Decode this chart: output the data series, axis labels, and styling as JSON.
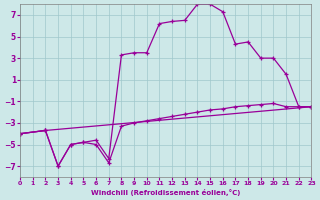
{
  "xlabel": "Windchill (Refroidissement éolien,°C)",
  "xlim": [
    0,
    23
  ],
  "ylim": [
    -8,
    8
  ],
  "xticks": [
    0,
    1,
    2,
    3,
    4,
    5,
    6,
    7,
    8,
    9,
    10,
    11,
    12,
    13,
    14,
    15,
    16,
    17,
    18,
    19,
    20,
    21,
    22,
    23
  ],
  "yticks": [
    -7,
    -5,
    -3,
    -1,
    1,
    3,
    5,
    7
  ],
  "bg_color": "#cde8e8",
  "line_color": "#990099",
  "line1_x": [
    0,
    2,
    23
  ],
  "line1_y": [
    -4.0,
    -3.7,
    -1.5
  ],
  "line2_x": [
    0,
    2,
    3,
    4,
    5,
    6,
    7,
    8,
    9,
    10,
    11,
    12,
    13,
    14,
    15,
    16,
    17,
    18,
    19,
    20,
    21,
    22,
    23
  ],
  "line2_y": [
    -4.0,
    -3.7,
    -7.0,
    -5.0,
    -4.8,
    -5.0,
    -6.7,
    -3.3,
    -3.0,
    -2.8,
    -2.6,
    -2.4,
    -2.2,
    -2.0,
    -1.8,
    -1.7,
    -1.5,
    -1.4,
    -1.3,
    -1.2,
    -1.5,
    -1.5,
    -1.5
  ],
  "line3_x": [
    0,
    2,
    3,
    4,
    5,
    6,
    7,
    8,
    9,
    10,
    11,
    12,
    13,
    14,
    15,
    16,
    17,
    18,
    19,
    20,
    21,
    22,
    23
  ],
  "line3_y": [
    -4.0,
    -3.7,
    -7.0,
    -5.0,
    -4.8,
    -4.6,
    -6.3,
    3.3,
    3.5,
    3.5,
    6.2,
    6.4,
    6.5,
    8.0,
    8.0,
    7.3,
    4.3,
    4.5,
    3.0,
    3.0,
    1.5,
    -1.5,
    -1.5
  ]
}
